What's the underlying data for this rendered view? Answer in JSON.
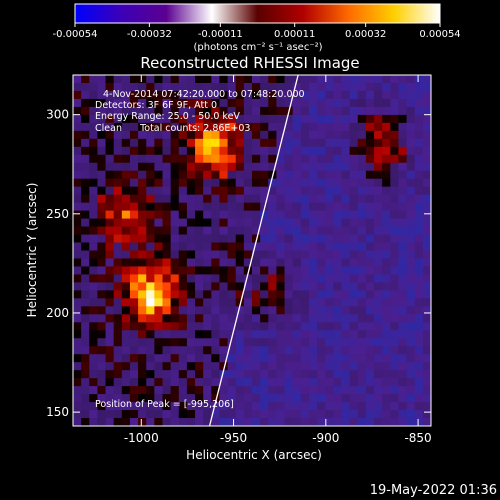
{
  "colorbar": {
    "ticks": [
      -0.00054,
      -0.00032,
      -0.00011,
      0.00011,
      0.00032,
      0.00054
    ],
    "tick_labels": [
      "-0.00054",
      "-0.00032",
      "-0.00011",
      "0.00011",
      "0.00032",
      "0.00054"
    ],
    "units_label": "(photons cm⁻² s⁻¹ asec⁻²)",
    "colormap": [
      "#0000ff",
      "#3b00b8",
      "#5b0090",
      "#ffffff",
      "#5a0000",
      "#b00000",
      "#ff6a00",
      "#ffd000",
      "#ffffff"
    ]
  },
  "plot": {
    "title": "Reconstructed RHESSI Image",
    "info_lines": [
      "4-Nov-2014 07:42:20.000 to 07:48:20.000",
      "Detectors: 3F 6F 9F, Att 0",
      "Energy Range: 25.0 - 50.0 keV",
      "Clean      Total counts: 2.86E+03"
    ],
    "peak_label": "Position of Peak = [-995,206]"
  },
  "footer": {
    "timestamp": "19-May-2022 01:36"
  },
  "chart_data": {
    "type": "heatmap",
    "title": "Reconstructed RHESSI Image",
    "xlabel": "Heliocentric X (arcsec)",
    "ylabel": "Heliocentric Y (arcsec)",
    "xlim": [
      -1037,
      -843
    ],
    "ylim": [
      143,
      320
    ],
    "x_ticks": [
      -1000,
      -950,
      -900,
      -850
    ],
    "y_ticks": [
      150,
      200,
      250,
      300
    ],
    "x_tick_labels": [
      "-1000",
      "-950",
      "-900",
      "-850"
    ],
    "y_tick_labels": [
      "150",
      "200",
      "250",
      "300"
    ],
    "colorbar_range": [
      -0.00054,
      0.00054
    ],
    "peak_position": [
      -995,
      206
    ],
    "limb_line": [
      [
        -963,
        143
      ],
      [
        -915,
        320
      ]
    ],
    "sources": [
      {
        "x": -995,
        "y": 210,
        "intensity": 0.95
      },
      {
        "x": -1010,
        "y": 250,
        "intensity": 0.55
      },
      {
        "x": -960,
        "y": 285,
        "intensity": 0.8
      },
      {
        "x": -870,
        "y": 285,
        "intensity": 0.75
      },
      {
        "x": -930,
        "y": 210,
        "intensity": 0.45
      }
    ]
  }
}
